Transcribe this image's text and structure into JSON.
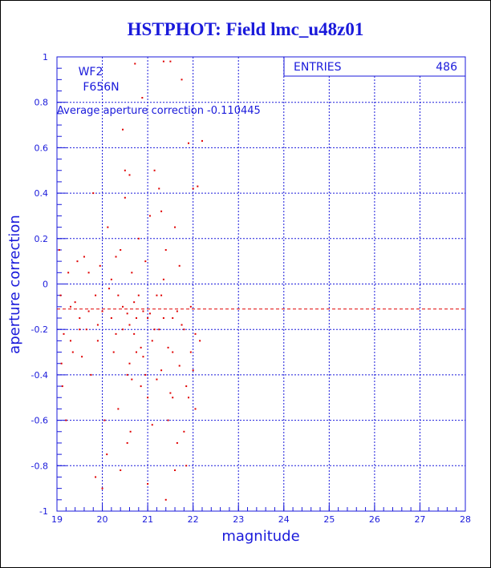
{
  "chart_data": {
    "type": "scatter",
    "title": "HSTPHOT: Field lmc_u48z01",
    "xlabel": "magnitude",
    "ylabel": "aperture correction",
    "xlim": [
      19,
      28
    ],
    "ylim": [
      -1,
      1
    ],
    "xticks": [
      "19",
      "20",
      "21",
      "22",
      "23",
      "24",
      "25",
      "26",
      "27",
      "28"
    ],
    "yticks": [
      "-1",
      "-0.8",
      "-0.6",
      "-0.4",
      "-0.2",
      "0",
      "0.2",
      "0.4",
      "0.6",
      "0.8",
      "1"
    ],
    "grid": true,
    "annotations": {
      "camera": "WF2",
      "filter": "F656N",
      "average_text": "Average aperture correction -0.110445"
    },
    "stats": {
      "label": "ENTRIES",
      "value": "486"
    },
    "average_line": -0.110445,
    "colors": {
      "axes": "#1a1adb",
      "points": "#e00000",
      "background": "#ffffff"
    },
    "points": [
      [
        19.05,
        0.15
      ],
      [
        19.08,
        -0.05
      ],
      [
        19.1,
        -0.35
      ],
      [
        19.12,
        -0.45
      ],
      [
        19.15,
        -0.22
      ],
      [
        19.2,
        -0.6
      ],
      [
        19.25,
        0.05
      ],
      [
        19.3,
        -0.1
      ],
      [
        19.35,
        -0.3
      ],
      [
        19.4,
        -0.08
      ],
      [
        19.45,
        0.1
      ],
      [
        19.5,
        -0.15
      ],
      [
        19.55,
        -0.32
      ],
      [
        19.6,
        0.12
      ],
      [
        19.65,
        -0.2
      ],
      [
        19.7,
        0.05
      ],
      [
        19.75,
        -0.4
      ],
      [
        19.8,
        0.4
      ],
      [
        19.85,
        -0.05
      ],
      [
        19.9,
        -0.25
      ],
      [
        19.95,
        0.08
      ],
      [
        20.0,
        -0.12
      ],
      [
        20.05,
        -0.6
      ],
      [
        20.1,
        -0.75
      ],
      [
        20.12,
        0.25
      ],
      [
        20.15,
        -0.02
      ],
      [
        20.2,
        0.02
      ],
      [
        20.25,
        -0.3
      ],
      [
        20.3,
        0.12
      ],
      [
        20.35,
        -0.55
      ],
      [
        20.4,
        0.15
      ],
      [
        20.45,
        -0.2
      ],
      [
        20.5,
        0.38
      ],
      [
        20.55,
        -0.4
      ],
      [
        20.6,
        0.48
      ],
      [
        20.62,
        -0.65
      ],
      [
        20.65,
        0.05
      ],
      [
        20.7,
        -0.08
      ],
      [
        20.72,
        0.97
      ],
      [
        20.75,
        -0.3
      ],
      [
        20.8,
        0.2
      ],
      [
        20.85,
        -0.45
      ],
      [
        20.88,
        0.82
      ],
      [
        20.9,
        -0.12
      ],
      [
        20.95,
        0.1
      ],
      [
        21.0,
        -0.5
      ],
      [
        21.05,
        0.3
      ],
      [
        21.1,
        -0.25
      ],
      [
        21.15,
        0.5
      ],
      [
        21.2,
        -0.05
      ],
      [
        21.25,
        0.42
      ],
      [
        21.3,
        -0.38
      ],
      [
        21.35,
        0.98
      ],
      [
        21.4,
        0.15
      ],
      [
        21.45,
        -0.6
      ],
      [
        21.5,
        0.98
      ],
      [
        21.55,
        -0.15
      ],
      [
        21.6,
        0.25
      ],
      [
        21.65,
        -0.7
      ],
      [
        21.7,
        0.08
      ],
      [
        21.75,
        0.9
      ],
      [
        21.8,
        -0.2
      ],
      [
        21.85,
        -0.45
      ],
      [
        21.9,
        0.62
      ],
      [
        21.95,
        -0.3
      ],
      [
        22.0,
        0.42
      ],
      [
        22.05,
        -0.55
      ],
      [
        22.1,
        0.43
      ],
      [
        22.15,
        -0.25
      ],
      [
        22.2,
        0.63
      ],
      [
        20.45,
        0.68
      ],
      [
        20.5,
        0.5
      ],
      [
        21.3,
        0.32
      ],
      [
        21.0,
        -0.88
      ],
      [
        21.4,
        -0.95
      ],
      [
        21.6,
        -0.82
      ],
      [
        20.4,
        -0.82
      ],
      [
        20.55,
        -0.7
      ],
      [
        20.0,
        -0.9
      ],
      [
        19.85,
        -0.85
      ],
      [
        20.6,
        -0.35
      ],
      [
        20.65,
        -0.42
      ],
      [
        20.7,
        -0.22
      ],
      [
        20.75,
        -0.15
      ],
      [
        20.8,
        -0.05
      ],
      [
        20.85,
        -0.28
      ],
      [
        21.5,
        -0.48
      ],
      [
        21.55,
        -0.5
      ],
      [
        21.65,
        -0.12
      ],
      [
        21.7,
        -0.36
      ],
      [
        21.8,
        -0.65
      ],
      [
        21.85,
        -0.8
      ],
      [
        21.9,
        -0.5
      ],
      [
        21.95,
        -0.1
      ],
      [
        22.0,
        -0.38
      ],
      [
        21.2,
        -0.42
      ],
      [
        21.25,
        -0.2
      ],
      [
        21.3,
        -0.05
      ],
      [
        21.35,
        0.02
      ],
      [
        21.45,
        -0.28
      ],
      [
        19.3,
        -0.25
      ],
      [
        19.5,
        -0.2
      ],
      [
        19.7,
        -0.12
      ],
      [
        19.9,
        -0.18
      ],
      [
        20.2,
        -0.15
      ],
      [
        20.3,
        -0.22
      ],
      [
        20.35,
        -0.05
      ],
      [
        20.45,
        -0.1
      ],
      [
        20.55,
        -0.13
      ],
      [
        20.6,
        -0.18
      ],
      [
        21.05,
        -0.13
      ],
      [
        21.15,
        -0.2
      ],
      [
        21.35,
        -0.15
      ],
      [
        21.55,
        -0.3
      ],
      [
        21.75,
        -0.18
      ],
      [
        22.05,
        -0.22
      ],
      [
        20.9,
        -0.32
      ],
      [
        20.95,
        -0.4
      ],
      [
        21.0,
        -0.15
      ],
      [
        21.1,
        -0.62
      ]
    ]
  }
}
